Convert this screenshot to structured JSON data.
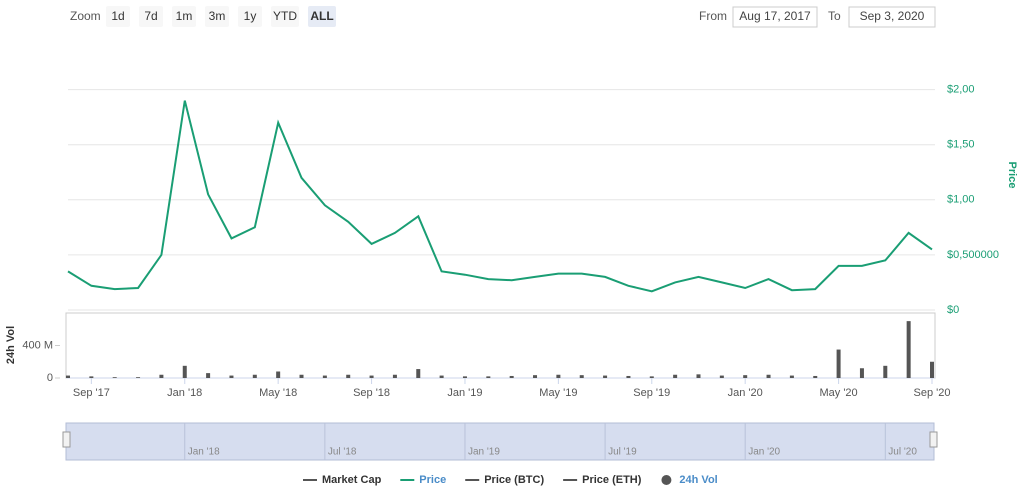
{
  "toolbar": {
    "zoom_label": "Zoom",
    "buttons": [
      {
        "label": "1d"
      },
      {
        "label": "7d"
      },
      {
        "label": "1m"
      },
      {
        "label": "3m"
      },
      {
        "label": "1y"
      },
      {
        "label": "YTD"
      },
      {
        "label": "ALL",
        "active": true
      }
    ],
    "from_label": "From",
    "from_value": "Aug 17, 2017",
    "to_label": "To",
    "to_value": "Sep 3, 2020"
  },
  "chart_data": [
    {
      "type": "line",
      "y_label": "Price",
      "x": [
        "2017-08",
        "2017-09",
        "2017-10",
        "2017-11",
        "2017-12",
        "2018-01",
        "2018-02",
        "2018-03",
        "2018-04",
        "2018-05",
        "2018-06",
        "2018-07",
        "2018-08",
        "2018-09",
        "2018-10",
        "2018-11",
        "2018-12",
        "2019-01",
        "2019-02",
        "2019-03",
        "2019-04",
        "2019-05",
        "2019-06",
        "2019-07",
        "2019-08",
        "2019-09",
        "2019-10",
        "2019-11",
        "2019-12",
        "2020-01",
        "2020-02",
        "2020-03",
        "2020-04",
        "2020-05",
        "2020-06",
        "2020-07",
        "2020-08",
        "2020-09"
      ],
      "series": [
        {
          "name": "Price",
          "color": "#1a9e74",
          "values": [
            0.35,
            0.22,
            0.19,
            0.2,
            0.5,
            1.9,
            1.05,
            0.65,
            0.75,
            1.7,
            1.2,
            0.95,
            0.8,
            0.6,
            0.7,
            0.85,
            0.35,
            0.32,
            0.28,
            0.27,
            0.3,
            0.33,
            0.33,
            0.3,
            0.22,
            0.17,
            0.25,
            0.3,
            0.25,
            0.2,
            0.28,
            0.18,
            0.19,
            0.4,
            0.4,
            0.45,
            0.7,
            0.55
          ]
        }
      ],
      "xlim": [
        "2017-08",
        "2020-09"
      ],
      "xticks": [
        {
          "value": "2017-09",
          "label": "Sep '17"
        },
        {
          "value": "2018-01",
          "label": "Jan '18"
        },
        {
          "value": "2018-05",
          "label": "May '18"
        },
        {
          "value": "2018-09",
          "label": "Sep '18"
        },
        {
          "value": "2019-01",
          "label": "Jan '19"
        },
        {
          "value": "2019-05",
          "label": "May '19"
        },
        {
          "value": "2019-09",
          "label": "Sep '19"
        },
        {
          "value": "2020-01",
          "label": "Jan '20"
        },
        {
          "value": "2020-05",
          "label": "May '20"
        },
        {
          "value": "2020-09",
          "label": "Sep '20"
        }
      ],
      "ylim": [
        0,
        2.45
      ],
      "yticks": [
        {
          "value": 0,
          "label": "$0"
        },
        {
          "value": 0.5,
          "label": "$0,500000"
        },
        {
          "value": 1,
          "label": "$1,00"
        },
        {
          "value": 1.5,
          "label": "$1,50"
        },
        {
          "value": 2,
          "label": "$2,00"
        }
      ],
      "grid": true
    },
    {
      "type": "bar",
      "y_label": "24h Vol",
      "x": [
        "2017-08",
        "2017-09",
        "2017-10",
        "2017-11",
        "2017-12",
        "2018-01",
        "2018-02",
        "2018-03",
        "2018-04",
        "2018-05",
        "2018-06",
        "2018-07",
        "2018-08",
        "2018-09",
        "2018-10",
        "2018-11",
        "2018-12",
        "2019-01",
        "2019-02",
        "2019-03",
        "2019-04",
        "2019-05",
        "2019-06",
        "2019-07",
        "2019-08",
        "2019-09",
        "2019-10",
        "2019-11",
        "2019-12",
        "2020-01",
        "2020-02",
        "2020-03",
        "2020-04",
        "2020-05",
        "2020-06",
        "2020-07",
        "2020-08",
        "2020-09"
      ],
      "series": [
        {
          "name": "24h Vol",
          "color": "#555555",
          "values": [
            30000000,
            20000000,
            10000000,
            10000000,
            40000000,
            150000000,
            60000000,
            30000000,
            40000000,
            80000000,
            40000000,
            30000000,
            40000000,
            30000000,
            40000000,
            110000000,
            30000000,
            20000000,
            20000000,
            25000000,
            35000000,
            40000000,
            35000000,
            30000000,
            25000000,
            20000000,
            40000000,
            45000000,
            30000000,
            35000000,
            40000000,
            30000000,
            25000000,
            350000000,
            120000000,
            150000000,
            700000000,
            200000000
          ]
        }
      ],
      "xlim": [
        "2017-08",
        "2020-09"
      ],
      "ylim": [
        0,
        800000000
      ],
      "yticks": [
        0,
        {
          "value": 400000000,
          "label": "400 M"
        }
      ]
    }
  ],
  "navigator": {
    "ticks": [
      {
        "value": "2018-01",
        "label": "Jan '18"
      },
      {
        "value": "2018-07",
        "label": "Jul '18"
      },
      {
        "value": "2019-01",
        "label": "Jan '19"
      },
      {
        "value": "2019-07",
        "label": "Jul '19"
      },
      {
        "value": "2020-01",
        "label": "Jan '20"
      },
      {
        "value": "2020-07",
        "label": "Jul '20"
      }
    ]
  },
  "legend": [
    {
      "name": "Market Cap",
      "color": "#555555",
      "symbol": "line"
    },
    {
      "name": "Price",
      "color": "#1a9e74",
      "symbol": "line",
      "active": true
    },
    {
      "name": "Price (BTC)",
      "color": "#555555",
      "symbol": "line"
    },
    {
      "name": "Price (ETH)",
      "color": "#555555",
      "symbol": "line"
    },
    {
      "name": "24h Vol",
      "color": "#555555",
      "symbol": "circle",
      "active": true
    }
  ]
}
